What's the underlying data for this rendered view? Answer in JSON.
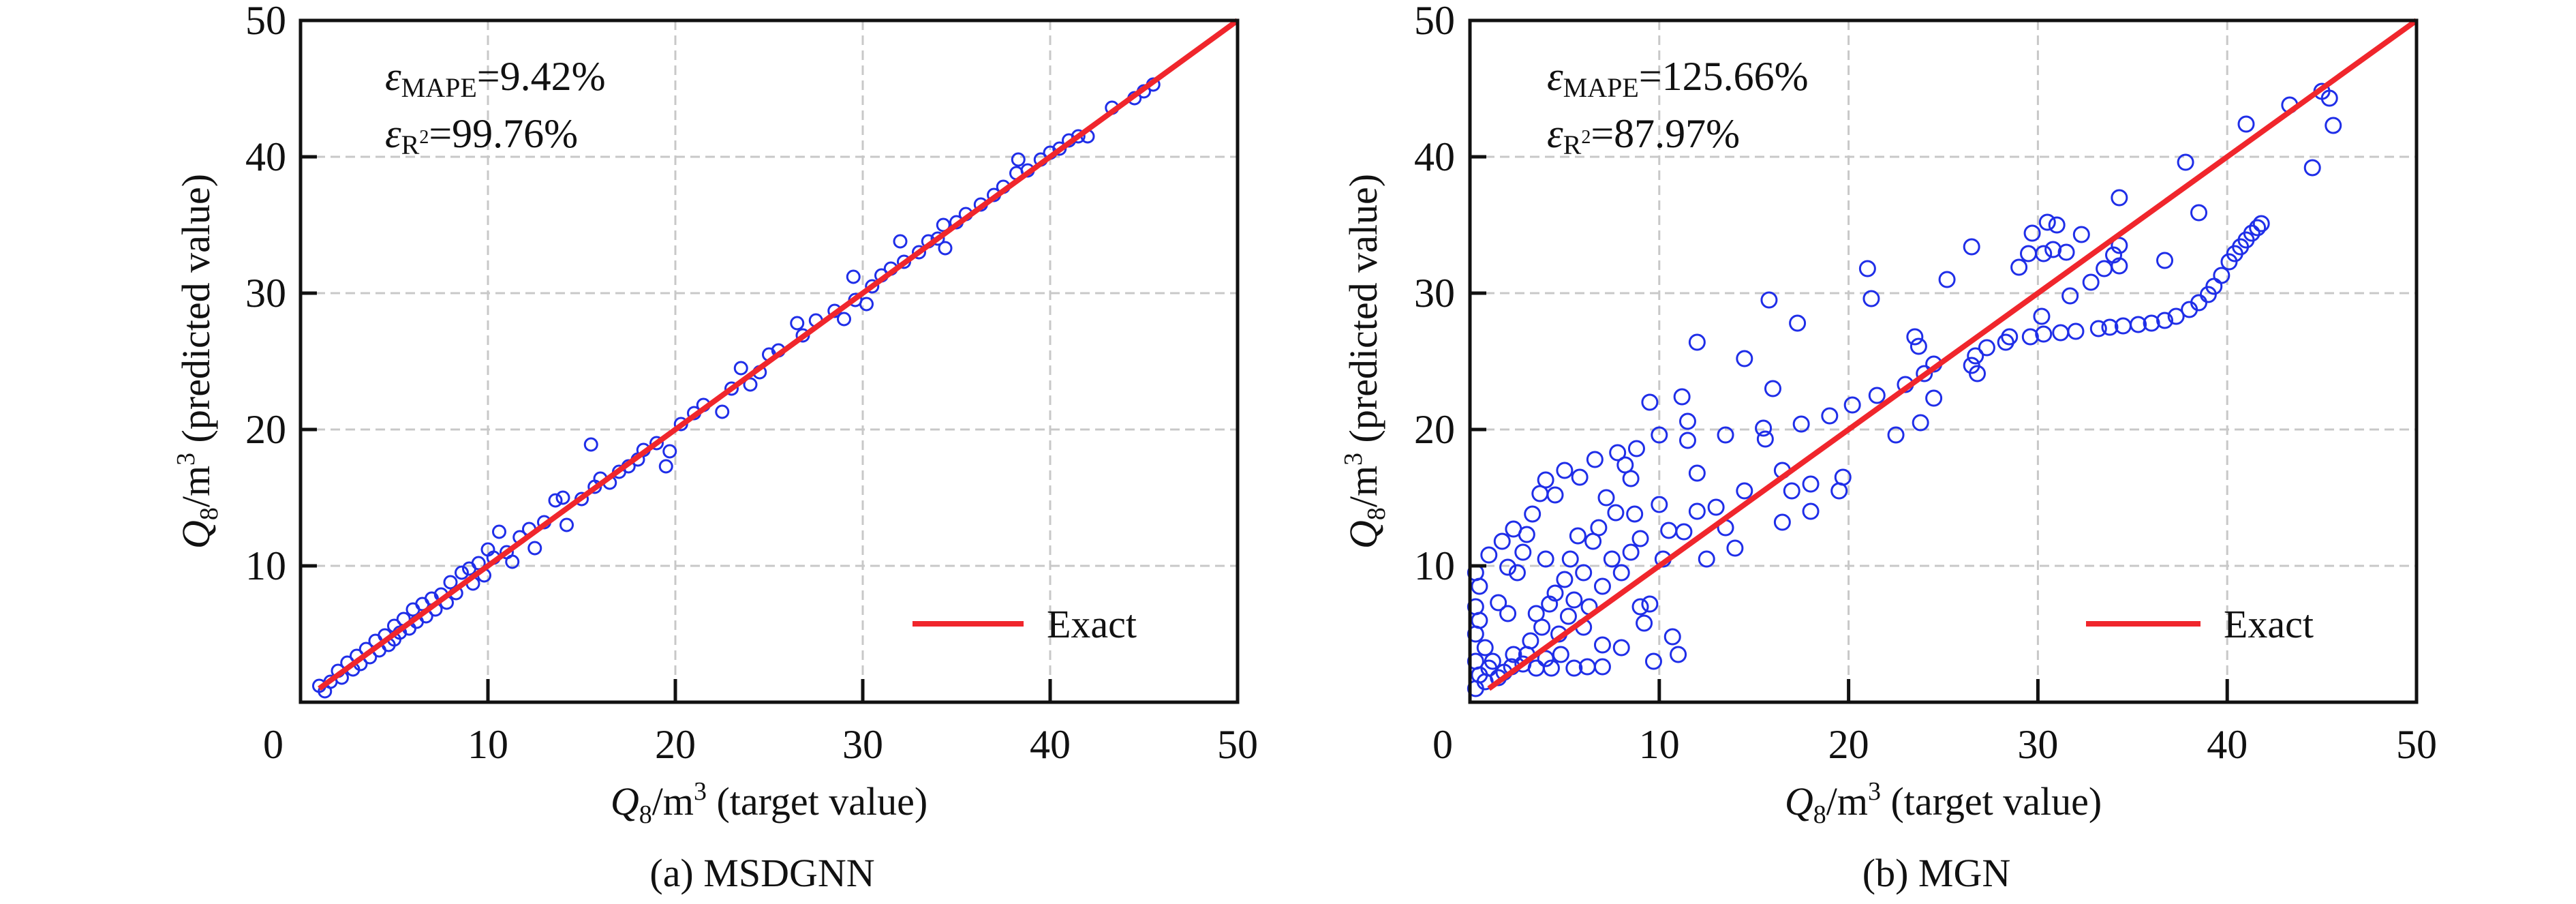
{
  "chart_data": [
    {
      "type": "scatter",
      "caption": "(a) MSDGNN",
      "xlabel": {
        "q": "Q",
        "sub": "8",
        "unit": "/m",
        "sup": "3",
        "rest": " (target value)"
      },
      "ylabel": {
        "q": "Q",
        "sub": "8",
        "unit": "/m",
        "sup": "3",
        "rest": " (predicted value)"
      },
      "xlim": [
        0,
        50
      ],
      "ylim": [
        0,
        50
      ],
      "xticks": [
        "0",
        "10",
        "20",
        "30",
        "40",
        "50"
      ],
      "yticks": [
        "10",
        "20",
        "30",
        "40",
        "50"
      ],
      "grid": true,
      "legend": {
        "position": "bottom-right",
        "label": "Exact"
      },
      "annotations": {
        "mape_symbol": "ε",
        "mape_sub": "MAPE",
        "mape_value": "=9.42%",
        "r2_symbol": "ε",
        "r2_sub": "R",
        "r2_sup": "2",
        "r2_value": "=99.76%"
      },
      "marker_color": "#1f2ee8",
      "line_color": "#f0262c",
      "exact_line": [
        [
          1,
          1
        ],
        [
          50,
          50
        ]
      ],
      "points": [
        [
          1,
          1.2
        ],
        [
          1.3,
          0.8
        ],
        [
          1.6,
          1.5
        ],
        [
          2,
          2.3
        ],
        [
          2.2,
          1.8
        ],
        [
          2.5,
          2.9
        ],
        [
          2.8,
          2.4
        ],
        [
          3,
          3.4
        ],
        [
          3.2,
          2.8
        ],
        [
          3.5,
          3.9
        ],
        [
          3.7,
          3.3
        ],
        [
          4,
          4.5
        ],
        [
          4.2,
          3.8
        ],
        [
          4.5,
          4.9
        ],
        [
          4.7,
          4.2
        ],
        [
          5,
          5.6
        ],
        [
          5,
          4.6
        ],
        [
          5.3,
          5.1
        ],
        [
          5.5,
          6.1
        ],
        [
          5.8,
          5.4
        ],
        [
          6,
          6.8
        ],
        [
          6.2,
          5.9
        ],
        [
          6.5,
          7.2
        ],
        [
          6.7,
          6.3
        ],
        [
          7,
          7.6
        ],
        [
          7.2,
          6.8
        ],
        [
          7.5,
          7.9
        ],
        [
          7.8,
          7.3
        ],
        [
          8,
          8.8
        ],
        [
          8.3,
          8.0
        ],
        [
          8.6,
          9.5
        ],
        [
          9,
          9.8
        ],
        [
          9.2,
          8.7
        ],
        [
          9.5,
          10.2
        ],
        [
          9.8,
          9.3
        ],
        [
          10,
          11.2
        ],
        [
          10.3,
          10.6
        ],
        [
          10.6,
          12.5
        ],
        [
          11,
          11.0
        ],
        [
          11.3,
          10.3
        ],
        [
          11.7,
          12.1
        ],
        [
          12.2,
          12.7
        ],
        [
          12.5,
          11.3
        ],
        [
          13,
          13.2
        ],
        [
          13.6,
          14.8
        ],
        [
          14,
          15.0
        ],
        [
          14.2,
          13.0
        ],
        [
          15,
          14.9
        ],
        [
          15.5,
          18.9
        ],
        [
          15.7,
          15.8
        ],
        [
          16,
          16.4
        ],
        [
          16.5,
          16.1
        ],
        [
          17,
          16.9
        ],
        [
          17.5,
          17.3
        ],
        [
          18,
          17.8
        ],
        [
          18.3,
          18.5
        ],
        [
          19,
          19.0
        ],
        [
          19.5,
          17.3
        ],
        [
          19.7,
          18.4
        ],
        [
          20.3,
          20.4
        ],
        [
          21,
          21.2
        ],
        [
          21.5,
          21.8
        ],
        [
          22.5,
          21.3
        ],
        [
          23,
          23.0
        ],
        [
          23.5,
          24.5
        ],
        [
          24,
          23.3
        ],
        [
          24.5,
          24.2
        ],
        [
          25,
          25.5
        ],
        [
          25.5,
          25.8
        ],
        [
          26.5,
          27.8
        ],
        [
          26.8,
          26.9
        ],
        [
          27.5,
          28.0
        ],
        [
          28.5,
          28.7
        ],
        [
          29,
          28.1
        ],
        [
          29.5,
          31.2
        ],
        [
          29.6,
          29.5
        ],
        [
          30.2,
          29.2
        ],
        [
          30.5,
          30.5
        ],
        [
          31,
          31.3
        ],
        [
          31.5,
          31.8
        ],
        [
          32,
          33.8
        ],
        [
          32.2,
          32.3
        ],
        [
          33,
          33.0
        ],
        [
          33.5,
          33.8
        ],
        [
          34,
          34.0
        ],
        [
          34.3,
          35.0
        ],
        [
          34.4,
          33.3
        ],
        [
          35,
          35.2
        ],
        [
          35.5,
          35.8
        ],
        [
          36.3,
          36.5
        ],
        [
          37,
          37.2
        ],
        [
          37.5,
          37.8
        ],
        [
          38.3,
          39.8
        ],
        [
          38.2,
          38.8
        ],
        [
          38.8,
          39.0
        ],
        [
          39.5,
          39.8
        ],
        [
          40,
          40.3
        ],
        [
          40.5,
          40.6
        ],
        [
          41,
          41.2
        ],
        [
          41.5,
          41.5
        ],
        [
          42,
          41.5
        ],
        [
          43.3,
          43.6
        ],
        [
          44.5,
          44.3
        ],
        [
          45,
          44.8
        ],
        [
          45.5,
          45.3
        ]
      ]
    },
    {
      "type": "scatter",
      "caption": "(b) MGN",
      "xlabel": {
        "q": "Q",
        "sub": "8",
        "unit": "/m",
        "sup": "3",
        "rest": " (target value)"
      },
      "ylabel": {
        "q": "Q",
        "sub": "8",
        "unit": "/m",
        "sup": "3",
        "rest": " (predicted value)"
      },
      "xlim": [
        0,
        50
      ],
      "ylim": [
        0,
        50
      ],
      "xticks": [
        "0",
        "10",
        "20",
        "30",
        "40",
        "50"
      ],
      "yticks": [
        "10",
        "20",
        "30",
        "40",
        "50"
      ],
      "grid": true,
      "legend": {
        "position": "bottom-right",
        "label": "Exact"
      },
      "annotations": {
        "mape_symbol": "ε",
        "mape_sub": "MAPE",
        "mape_value": "=125.66%",
        "r2_symbol": "ε",
        "r2_sub": "R",
        "r2_sup": "2",
        "r2_value": "=87.97%"
      },
      "marker_color": "#1f2ee8",
      "line_color": "#f0262c",
      "exact_line": [
        [
          1,
          1
        ],
        [
          50,
          50
        ]
      ],
      "points": [
        [
          0.3,
          1
        ],
        [
          0.3,
          3
        ],
        [
          0.3,
          5
        ],
        [
          0.3,
          7
        ],
        [
          0.3,
          9.5
        ],
        [
          0.5,
          2
        ],
        [
          0.5,
          6
        ],
        [
          0.5,
          8.5
        ],
        [
          0.8,
          1.5
        ],
        [
          0.8,
          4
        ],
        [
          1,
          2.5
        ],
        [
          1,
          10.8
        ],
        [
          1.2,
          3
        ],
        [
          1.5,
          1.8
        ],
        [
          1.5,
          7.3
        ],
        [
          1.7,
          11.8
        ],
        [
          1.8,
          2.2
        ],
        [
          2,
          6.5
        ],
        [
          2,
          9.9
        ],
        [
          2.2,
          2.6
        ],
        [
          2.3,
          3.5
        ],
        [
          2.3,
          12.7
        ],
        [
          2.5,
          9.5
        ],
        [
          2.8,
          2.8
        ],
        [
          2.8,
          11.0
        ],
        [
          3,
          3.5
        ],
        [
          3,
          12.3
        ],
        [
          3.2,
          4.5
        ],
        [
          3.3,
          13.8
        ],
        [
          3.5,
          2.5
        ],
        [
          3.5,
          6.5
        ],
        [
          3.7,
          15.3
        ],
        [
          3.8,
          5.5
        ],
        [
          4,
          3.2
        ],
        [
          4,
          10.5
        ],
        [
          4,
          16.3
        ],
        [
          4.2,
          7.2
        ],
        [
          4.3,
          2.5
        ],
        [
          4.5,
          8.0
        ],
        [
          4.5,
          15.2
        ],
        [
          4.7,
          5.0
        ],
        [
          4.8,
          3.5
        ],
        [
          5,
          9.0
        ],
        [
          5,
          17.0
        ],
        [
          5.2,
          6.3
        ],
        [
          5.3,
          10.5
        ],
        [
          5.5,
          2.5
        ],
        [
          5.5,
          7.5
        ],
        [
          5.7,
          12.2
        ],
        [
          5.8,
          16.5
        ],
        [
          6,
          5.5
        ],
        [
          6,
          9.5
        ],
        [
          6.2,
          2.6
        ],
        [
          6.3,
          7.0
        ],
        [
          6.5,
          11.8
        ],
        [
          6.6,
          17.8
        ],
        [
          6.8,
          12.8
        ],
        [
          7,
          8.5
        ],
        [
          7,
          4.2
        ],
        [
          7,
          2.6
        ],
        [
          7.2,
          15.0
        ],
        [
          7.5,
          10.5
        ],
        [
          7.7,
          13.9
        ],
        [
          7.8,
          18.3
        ],
        [
          8,
          9.5
        ],
        [
          8,
          4.0
        ],
        [
          8.2,
          17.4
        ],
        [
          8.5,
          11.0
        ],
        [
          8.5,
          16.4
        ],
        [
          8.7,
          13.8
        ],
        [
          8.8,
          18.6
        ],
        [
          9,
          12.0
        ],
        [
          9,
          7.0
        ],
        [
          9.2,
          5.8
        ],
        [
          9.5,
          22.0
        ],
        [
          9.5,
          7.2
        ],
        [
          9.7,
          3.0
        ],
        [
          10,
          14.5
        ],
        [
          10,
          19.6
        ],
        [
          10.2,
          10.5
        ],
        [
          10.5,
          12.6
        ],
        [
          10.7,
          4.8
        ],
        [
          11,
          3.5
        ],
        [
          11.2,
          22.4
        ],
        [
          11.3,
          12.5
        ],
        [
          11.5,
          19.2
        ],
        [
          11.5,
          20.6
        ],
        [
          12,
          26.4
        ],
        [
          12,
          16.8
        ],
        [
          12,
          14.0
        ],
        [
          12.5,
          10.5
        ],
        [
          13,
          14.3
        ],
        [
          13.5,
          19.6
        ],
        [
          13.5,
          12.8
        ],
        [
          14,
          11.3
        ],
        [
          14.5,
          25.2
        ],
        [
          14.5,
          15.5
        ],
        [
          15.5,
          20.1
        ],
        [
          15.6,
          19.3
        ],
        [
          15.8,
          29.5
        ],
        [
          16,
          23.0
        ],
        [
          16.5,
          17.0
        ],
        [
          16.5,
          13.2
        ],
        [
          17,
          15.5
        ],
        [
          17.3,
          27.8
        ],
        [
          17.5,
          20.4
        ],
        [
          18,
          16.0
        ],
        [
          18,
          14.0
        ],
        [
          19,
          21.0
        ],
        [
          19.5,
          15.5
        ],
        [
          19.7,
          16.5
        ],
        [
          20.2,
          21.8
        ],
        [
          21,
          31.8
        ],
        [
          21.2,
          29.6
        ],
        [
          21.5,
          22.5
        ],
        [
          22.5,
          19.6
        ],
        [
          23,
          23.3
        ],
        [
          23.5,
          26.8
        ],
        [
          23.7,
          26.1
        ],
        [
          23.8,
          20.5
        ],
        [
          24,
          24.1
        ],
        [
          24.5,
          22.3
        ],
        [
          24.5,
          24.8
        ],
        [
          25.2,
          31.0
        ],
        [
          26.5,
          33.4
        ],
        [
          26.5,
          24.7
        ],
        [
          26.7,
          25.4
        ],
        [
          26.8,
          24.1
        ],
        [
          27.3,
          26.0
        ],
        [
          28.3,
          26.4
        ],
        [
          28.5,
          26.8
        ],
        [
          29,
          31.9
        ],
        [
          29.5,
          32.9
        ],
        [
          29.6,
          26.8
        ],
        [
          29.7,
          34.4
        ],
        [
          30.2,
          28.3
        ],
        [
          30.3,
          32.9
        ],
        [
          30.3,
          27.0
        ],
        [
          30.5,
          35.2
        ],
        [
          30.8,
          33.2
        ],
        [
          31,
          35.0
        ],
        [
          31.2,
          27.1
        ],
        [
          31.5,
          33.0
        ],
        [
          31.7,
          29.8
        ],
        [
          32,
          27.2
        ],
        [
          32.3,
          34.3
        ],
        [
          32.8,
          30.8
        ],
        [
          33.2,
          27.4
        ],
        [
          33.5,
          31.8
        ],
        [
          33.8,
          27.5
        ],
        [
          34,
          32.8
        ],
        [
          34.3,
          37.0
        ],
        [
          34.3,
          33.5
        ],
        [
          34.3,
          32.0
        ],
        [
          34.5,
          27.6
        ],
        [
          35.3,
          27.7
        ],
        [
          36,
          27.8
        ],
        [
          36.7,
          32.4
        ],
        [
          36.7,
          28.0
        ],
        [
          37.3,
          28.3
        ],
        [
          37.8,
          39.6
        ],
        [
          38,
          28.8
        ],
        [
          38.5,
          35.9
        ],
        [
          38.5,
          29.3
        ],
        [
          39,
          29.9
        ],
        [
          39.3,
          30.5
        ],
        [
          39.7,
          31.3
        ],
        [
          40.1,
          32.3
        ],
        [
          40.4,
          32.9
        ],
        [
          40.7,
          33.4
        ],
        [
          41,
          33.9
        ],
        [
          41.3,
          34.4
        ],
        [
          41.6,
          34.8
        ],
        [
          41.8,
          35.1
        ],
        [
          41,
          42.4
        ],
        [
          43.3,
          43.8
        ],
        [
          44.5,
          39.2
        ],
        [
          45,
          44.8
        ],
        [
          45.4,
          44.3
        ],
        [
          45.6,
          42.3
        ]
      ]
    }
  ]
}
